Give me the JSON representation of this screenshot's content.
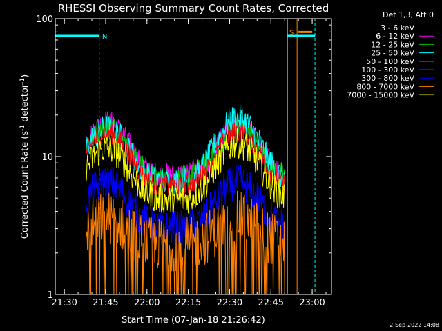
{
  "chart_data": {
    "type": "line",
    "title": "RHESSI Observing Summary Count Rates, Corrected",
    "xlabel": "Start Time (07-Jan-18 21:26:42)",
    "ylabel_main": "Corrected Count Rate (s",
    "ylabel_sup1": "-1",
    "ylabel_mid": " detector",
    "ylabel_sup2": "-1",
    "ylabel_end": ")",
    "y_scale": "log",
    "ylim": [
      1,
      100
    ],
    "xlim": [
      "21:26:42",
      "23:07:00"
    ],
    "x_ticks": [
      "21:30",
      "21:45",
      "22:00",
      "22:15",
      "22:30",
      "22:45",
      "23:00"
    ],
    "y_ticks": [
      "1",
      "10",
      "100"
    ],
    "legend_header": "Det 1,3, Att 0",
    "legend_position": "top-right, outside plot",
    "footer_date": "2-Sep-2022 14:08",
    "data_start": "21:38:00",
    "data_end": "22:50:00",
    "series": [
      {
        "name": "3 - 6 keV",
        "color": "#000000",
        "base": 7.6,
        "peak1": 18.0,
        "peak2": 17.0,
        "noise": 0.28
      },
      {
        "name": "6 - 12 keV",
        "color": "#ff00ff",
        "base": 7.2,
        "peak1": 17.5,
        "peak2": 16.5,
        "noise": 0.22
      },
      {
        "name": "12 - 25 keV",
        "color": "#00c000",
        "base": 6.8,
        "peak1": 16.5,
        "peak2": 16.0,
        "noise": 0.22
      },
      {
        "name": "25 - 50 keV",
        "color": "#00ffff",
        "base": 6.5,
        "peak1": 16.0,
        "peak2": 19.0,
        "noise": 0.24
      },
      {
        "name": "50 - 100 keV",
        "color": "#ffff00",
        "base": 4.8,
        "peak1": 11.5,
        "peak2": 12.5,
        "noise": 0.26
      },
      {
        "name": "100 - 300 keV",
        "color": "#ff0000",
        "base": 6.0,
        "peak1": 15.0,
        "peak2": 15.0,
        "noise": 0.18
      },
      {
        "name": "300 - 800 keV",
        "color": "#0000ff",
        "base": 3.0,
        "peak1": 6.5,
        "peak2": 6.5,
        "noise": 0.3
      },
      {
        "name": "800 - 7000 keV",
        "color": "#ff8000",
        "base": 2.3,
        "peak1": 3.6,
        "peak2": 3.6,
        "noise": 0.45
      },
      {
        "name": "7000 - 15000 keV",
        "color": "#808000",
        "base": 0,
        "peak1": 0,
        "peak2": 0,
        "noise": 0
      }
    ],
    "flags": [
      {
        "label": "N",
        "color": "#00ffff",
        "from": "21:26:42",
        "to": "21:42:40",
        "y": 75
      },
      {
        "label": "S",
        "color": "#ff8000",
        "from": "22:55:00",
        "to": "23:00:00",
        "y": 80
      }
    ],
    "vlines": [
      {
        "color": "#00ffff",
        "time": "21:26:42",
        "style": "solid"
      },
      {
        "color": "#00ffff",
        "time": "21:42:40",
        "style": "dashed"
      },
      {
        "color": "#00ffff",
        "time": "22:51:00",
        "style": "solid"
      },
      {
        "color": "#ff8000",
        "time": "22:54:30",
        "style": "solid"
      },
      {
        "color": "#00ffff",
        "time": "23:01:00",
        "style": "dashed"
      }
    ],
    "cyan_flag_bar": {
      "from": "22:51:00",
      "to": "23:01:00",
      "y": 75
    }
  }
}
